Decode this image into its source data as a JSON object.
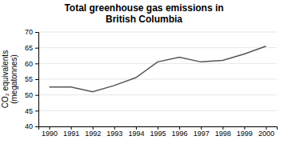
{
  "chart_data": {
    "type": "line",
    "title": "Total greenhouse gas emissions in\nBritish Columbia",
    "y_label": "CO₂ equivalents\n(megatonnes)",
    "x": [
      1990,
      1991,
      1992,
      1993,
      1994,
      1995,
      1996,
      1997,
      1998,
      1999,
      2000
    ],
    "values": [
      52.5,
      52.5,
      51.0,
      53.0,
      55.5,
      60.5,
      62.0,
      60.5,
      61.0,
      63.0,
      65.5
    ],
    "color": "#555555",
    "xlim": [
      1989.5,
      2000.5
    ],
    "xticks": [
      1990,
      1991,
      1992,
      1993,
      1994,
      1995,
      1996,
      1997,
      1998,
      1999,
      2000
    ],
    "ylim": [
      40,
      70
    ],
    "yticks": [
      40,
      45,
      50,
      55,
      60,
      65,
      70
    ],
    "grid": true
  }
}
